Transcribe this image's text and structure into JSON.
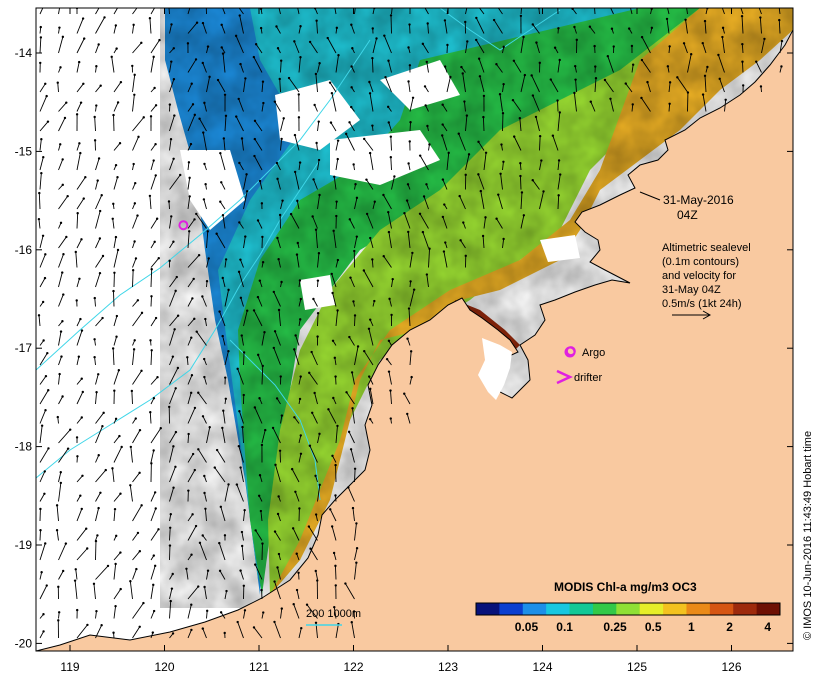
{
  "map": {
    "lat_ticks": [
      {
        "value": -14,
        "label": "-14"
      },
      {
        "value": -15,
        "label": "-15"
      },
      {
        "value": -16,
        "label": "-16"
      },
      {
        "value": -17,
        "label": "-17"
      },
      {
        "value": -18,
        "label": "-18"
      },
      {
        "value": -19,
        "label": "-19"
      },
      {
        "value": -20,
        "label": "-20"
      }
    ],
    "lon_ticks": [
      {
        "value": 119,
        "label": "119"
      },
      {
        "value": 120,
        "label": "120"
      },
      {
        "value": 121,
        "label": "121"
      },
      {
        "value": 122,
        "label": "122"
      },
      {
        "value": 123,
        "label": "123"
      },
      {
        "value": 124,
        "label": "124"
      },
      {
        "value": 125,
        "label": "125"
      },
      {
        "value": 126,
        "label": "126"
      }
    ],
    "lon_range": [
      118.6,
      126.7
    ],
    "lat_range": [
      -20.1,
      -13.6
    ],
    "colors": {
      "land": "#f9c9a0",
      "no_data": "#ffffff",
      "contour": "#3fd6e8",
      "marker": "#e020e0",
      "vector": "#000000"
    }
  },
  "annotations": {
    "date_line1": "31-May-2016",
    "date_line2": "04Z",
    "legend_line1": "Altimetric sealevel",
    "legend_line2": "(0.1m contours)",
    "legend_line3": "and velocity for",
    "legend_line4": "31-May 04Z",
    "legend_line5": "0.5m/s (1kt 24h)",
    "argo_label": "Argo",
    "drifter_label": "drifter",
    "isobath_label": "200  1000m",
    "credit": "© IMOS 10-Jun-2016 11:43:49 Hobart time"
  },
  "argo_floats": [
    {
      "lon": 120.2,
      "lat": -15.75
    },
    {
      "lon": 124.3,
      "lat": -17.03
    }
  ],
  "colorbar": {
    "title": "MODIS Chl-a mg/m3 OC3",
    "scale": "log",
    "range": [
      0.02,
      5
    ],
    "colors": [
      "#08127a",
      "#0b3fd0",
      "#1d8fe8",
      "#19c7e0",
      "#13c896",
      "#33c948",
      "#8fe035",
      "#e6ee2a",
      "#f3c21f",
      "#ea8a18",
      "#d65512",
      "#9e2a0c",
      "#6e1004"
    ],
    "ticks": [
      {
        "value": 0.05,
        "label": "0.05"
      },
      {
        "value": 0.1,
        "label": "0.1"
      },
      {
        "value": 0.25,
        "label": "0.25"
      },
      {
        "value": 0.5,
        "label": "0.5"
      },
      {
        "value": 1,
        "label": "1"
      },
      {
        "value": 2,
        "label": "2"
      },
      {
        "value": 4,
        "label": "4"
      }
    ]
  }
}
